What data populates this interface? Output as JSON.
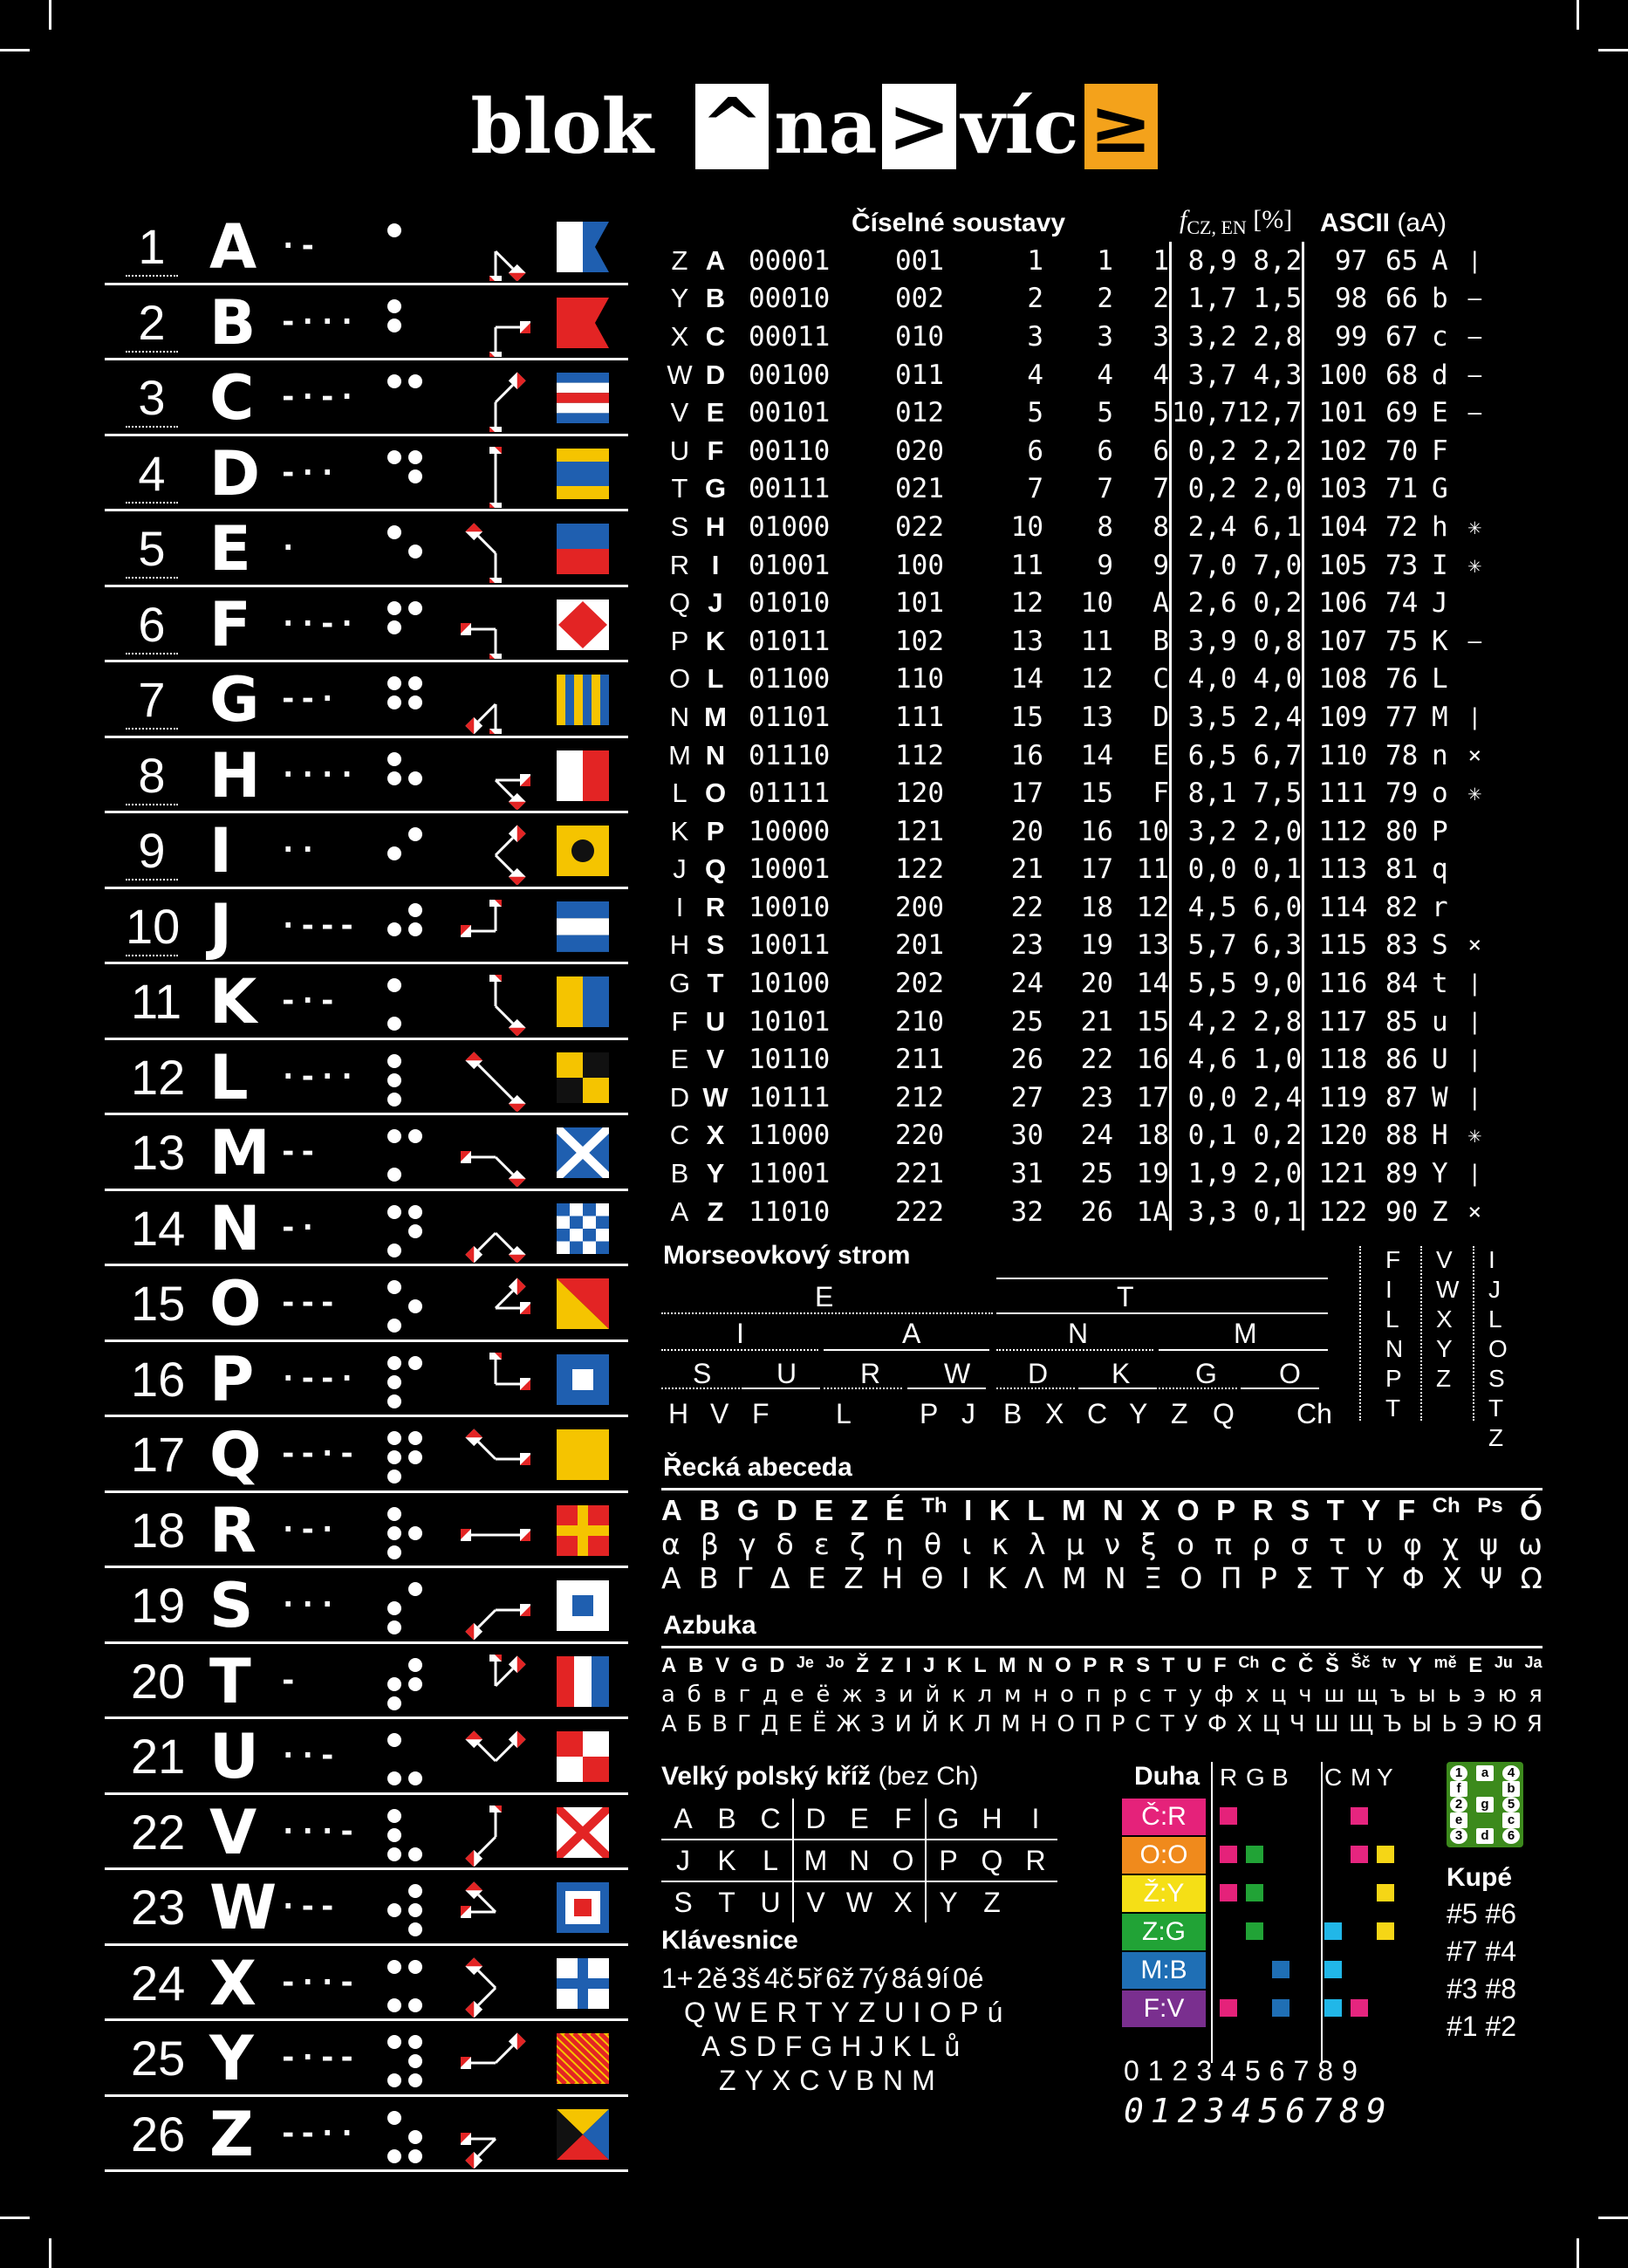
{
  "title": {
    "a": "blok",
    "b": "^",
    "c": "na",
    "d": ">",
    "e": "víc",
    "f": "≥"
  },
  "letters": [
    {
      "n": "1",
      "l": "A",
      "m": "·-"
    },
    {
      "n": "2",
      "l": "B",
      "m": "-···"
    },
    {
      "n": "3",
      "l": "C",
      "m": "-·-·"
    },
    {
      "n": "4",
      "l": "D",
      "m": "-··"
    },
    {
      "n": "5",
      "l": "E",
      "m": "·"
    },
    {
      "n": "6",
      "l": "F",
      "m": "··-·"
    },
    {
      "n": "7",
      "l": "G",
      "m": "--·"
    },
    {
      "n": "8",
      "l": "H",
      "m": "····"
    },
    {
      "n": "9",
      "l": "I",
      "m": "··"
    },
    {
      "n": "10",
      "l": "J",
      "m": "·---"
    },
    {
      "n": "11",
      "l": "K",
      "m": "-·-"
    },
    {
      "n": "12",
      "l": "L",
      "m": "·-··"
    },
    {
      "n": "13",
      "l": "M",
      "m": "--"
    },
    {
      "n": "14",
      "l": "N",
      "m": "-·"
    },
    {
      "n": "15",
      "l": "O",
      "m": "---"
    },
    {
      "n": "16",
      "l": "P",
      "m": "·--·"
    },
    {
      "n": "17",
      "l": "Q",
      "m": "--·-"
    },
    {
      "n": "18",
      "l": "R",
      "m": "·-·"
    },
    {
      "n": "19",
      "l": "S",
      "m": "···"
    },
    {
      "n": "20",
      "l": "T",
      "m": "-"
    },
    {
      "n": "21",
      "l": "U",
      "m": "··-"
    },
    {
      "n": "22",
      "l": "V",
      "m": "···-"
    },
    {
      "n": "23",
      "l": "W",
      "m": "·--"
    },
    {
      "n": "24",
      "l": "X",
      "m": "-··-"
    },
    {
      "n": "25",
      "l": "Y",
      "m": "-·--"
    },
    {
      "n": "26",
      "l": "Z",
      "m": "--··"
    }
  ],
  "numsys": {
    "heading": "Číselné soustavy",
    "freq_label": "f",
    "freq_sub": "CZ, EN",
    "freq_unit": "[%]",
    "ascii_label": "ASCII",
    "ascii_case": "(aA)",
    "rows": [
      [
        "Z",
        "A",
        "00001",
        "001",
        "1",
        "1",
        "1",
        "8,9",
        "8,2",
        "97",
        "65",
        "A",
        "|"
      ],
      [
        "Y",
        "B",
        "00010",
        "002",
        "2",
        "2",
        "2",
        "1,7",
        "1,5",
        "98",
        "66",
        "b",
        "–"
      ],
      [
        "X",
        "C",
        "00011",
        "010",
        "3",
        "3",
        "3",
        "3,2",
        "2,8",
        "99",
        "67",
        "c",
        "–"
      ],
      [
        "W",
        "D",
        "00100",
        "011",
        "4",
        "4",
        "4",
        "3,7",
        "4,3",
        "100",
        "68",
        "d",
        "–"
      ],
      [
        "V",
        "E",
        "00101",
        "012",
        "5",
        "5",
        "5",
        "10,7",
        "12,7",
        "101",
        "69",
        "E",
        "–"
      ],
      [
        "U",
        "F",
        "00110",
        "020",
        "6",
        "6",
        "6",
        "0,2",
        "2,2",
        "102",
        "70",
        "F",
        ""
      ],
      [
        "T",
        "G",
        "00111",
        "021",
        "7",
        "7",
        "7",
        "0,2",
        "2,0",
        "103",
        "71",
        "G",
        ""
      ],
      [
        "S",
        "H",
        "01000",
        "022",
        "10",
        "8",
        "8",
        "2,4",
        "6,1",
        "104",
        "72",
        "h",
        "✳"
      ],
      [
        "R",
        "I",
        "01001",
        "100",
        "11",
        "9",
        "9",
        "7,0",
        "7,0",
        "105",
        "73",
        "I",
        "✳"
      ],
      [
        "Q",
        "J",
        "01010",
        "101",
        "12",
        "10",
        "A",
        "2,6",
        "0,2",
        "106",
        "74",
        "J",
        ""
      ],
      [
        "P",
        "K",
        "01011",
        "102",
        "13",
        "11",
        "B",
        "3,9",
        "0,8",
        "107",
        "75",
        "K",
        "–"
      ],
      [
        "O",
        "L",
        "01100",
        "110",
        "14",
        "12",
        "C",
        "4,0",
        "4,0",
        "108",
        "76",
        "L",
        ""
      ],
      [
        "N",
        "M",
        "01101",
        "111",
        "15",
        "13",
        "D",
        "3,5",
        "2,4",
        "109",
        "77",
        "M",
        "|"
      ],
      [
        "M",
        "N",
        "01110",
        "112",
        "16",
        "14",
        "E",
        "6,5",
        "6,7",
        "110",
        "78",
        "n",
        "×"
      ],
      [
        "L",
        "O",
        "01111",
        "120",
        "17",
        "15",
        "F",
        "8,1",
        "7,5",
        "111",
        "79",
        "o",
        "✳"
      ],
      [
        "K",
        "P",
        "10000",
        "121",
        "20",
        "16",
        "10",
        "3,2",
        "2,0",
        "112",
        "80",
        "P",
        ""
      ],
      [
        "J",
        "Q",
        "10001",
        "122",
        "21",
        "17",
        "11",
        "0,0",
        "0,1",
        "113",
        "81",
        "q",
        ""
      ],
      [
        "I",
        "R",
        "10010",
        "200",
        "22",
        "18",
        "12",
        "4,5",
        "6,0",
        "114",
        "82",
        "r",
        ""
      ],
      [
        "H",
        "S",
        "10011",
        "201",
        "23",
        "19",
        "13",
        "5,7",
        "6,3",
        "115",
        "83",
        "S",
        "×"
      ],
      [
        "G",
        "T",
        "10100",
        "202",
        "24",
        "20",
        "14",
        "5,5",
        "9,0",
        "116",
        "84",
        "t",
        "|"
      ],
      [
        "F",
        "U",
        "10101",
        "210",
        "25",
        "21",
        "15",
        "4,2",
        "2,8",
        "117",
        "85",
        "u",
        "|"
      ],
      [
        "E",
        "V",
        "10110",
        "211",
        "26",
        "22",
        "16",
        "4,6",
        "1,0",
        "118",
        "86",
        "U",
        "|"
      ],
      [
        "D",
        "W",
        "10111",
        "212",
        "27",
        "23",
        "17",
        "0,0",
        "2,4",
        "119",
        "87",
        "W",
        "|"
      ],
      [
        "C",
        "X",
        "11000",
        "220",
        "30",
        "24",
        "18",
        "0,1",
        "0,2",
        "120",
        "88",
        "H",
        "✳"
      ],
      [
        "B",
        "Y",
        "11001",
        "221",
        "31",
        "25",
        "19",
        "1,9",
        "2,0",
        "121",
        "89",
        "Y",
        "|"
      ],
      [
        "A",
        "Z",
        "11010",
        "222",
        "32",
        "26",
        "1A",
        "3,3",
        "0,1",
        "122",
        "90",
        "Z",
        "×"
      ]
    ]
  },
  "morse": {
    "heading": "Morseovkový strom",
    "l1": [
      "E",
      "T"
    ],
    "l2": [
      "I",
      "A",
      "N",
      "M"
    ],
    "l3": [
      "S",
      "U",
      "R",
      "W",
      "D",
      "K",
      "G",
      "O"
    ],
    "l4": [
      "H",
      "V",
      "F",
      "",
      "L",
      "",
      "P",
      "J",
      "B",
      "X",
      "C",
      "Y",
      "Z",
      "Q",
      "",
      "Ch"
    ],
    "side1": [
      "F",
      "I",
      "L",
      "N",
      "P",
      "T"
    ],
    "side2": [
      "V",
      "W",
      "X",
      "Y",
      "Z"
    ],
    "side3": [
      "I",
      "J",
      "L",
      "O",
      "S",
      "T",
      "Z"
    ]
  },
  "greek": {
    "heading": "Řecká abeceda",
    "latin": [
      "A",
      "B",
      "G",
      "D",
      "E",
      "Z",
      "É",
      "Th",
      "I",
      "K",
      "L",
      "M",
      "N",
      "X",
      "O",
      "P",
      "R",
      "S",
      "T",
      "Y",
      "F",
      "Ch",
      "Ps",
      "Ó"
    ],
    "lower": [
      "α",
      "β",
      "γ",
      "δ",
      "ε",
      "ζ",
      "η",
      "θ",
      "ι",
      "κ",
      "λ",
      "μ",
      "ν",
      "ξ",
      "ο",
      "π",
      "ρ",
      "σ",
      "τ",
      "υ",
      "φ",
      "χ",
      "ψ",
      "ω"
    ],
    "upper": [
      "Α",
      "Β",
      "Γ",
      "Δ",
      "Ε",
      "Ζ",
      "Η",
      "Θ",
      "Ι",
      "Κ",
      "Λ",
      "Μ",
      "Ν",
      "Ξ",
      "Ο",
      "Π",
      "Ρ",
      "Σ",
      "Τ",
      "Υ",
      "Φ",
      "Χ",
      "Ψ",
      "Ω"
    ]
  },
  "azbuka": {
    "heading": "Azbuka",
    "latin": [
      "A",
      "B",
      "V",
      "G",
      "D",
      "Je",
      "Jo",
      "Ž",
      "Z",
      "I",
      "J",
      "K",
      "L",
      "M",
      "N",
      "O",
      "P",
      "R",
      "S",
      "T",
      "U",
      "F",
      "Ch",
      "C",
      "Č",
      "Š",
      "Šč",
      "tv",
      "Y",
      "mě",
      "E",
      "Ju",
      "Ja"
    ],
    "lower": [
      "а",
      "б",
      "в",
      "г",
      "д",
      "е",
      "ё",
      "ж",
      "з",
      "и",
      "й",
      "к",
      "л",
      "м",
      "н",
      "о",
      "п",
      "р",
      "с",
      "т",
      "у",
      "ф",
      "х",
      "ц",
      "ч",
      "ш",
      "щ",
      "ъ",
      "ы",
      "ь",
      "э",
      "ю",
      "я"
    ],
    "upper": [
      "А",
      "Б",
      "В",
      "Г",
      "Д",
      "Е",
      "Ё",
      "Ж",
      "З",
      "И",
      "Й",
      "К",
      "Л",
      "М",
      "Н",
      "О",
      "П",
      "Р",
      "С",
      "Т",
      "У",
      "Ф",
      "Х",
      "Ц",
      "Ч",
      "Ш",
      "Щ",
      "Ъ",
      "Ы",
      "Ь",
      "Э",
      "Ю",
      "Я"
    ]
  },
  "polish": {
    "heading": "Velký polský kříž",
    "note": "(bez Ch)",
    "grid": [
      [
        "A",
        "B",
        "C",
        "D",
        "E",
        "F",
        "G",
        "H",
        "I"
      ],
      [
        "J",
        "K",
        "L",
        "M",
        "N",
        "O",
        "P",
        "Q",
        "R"
      ],
      [
        "S",
        "T",
        "U",
        "V",
        "W",
        "X",
        "Y",
        "Z",
        ""
      ]
    ]
  },
  "keyboard": {
    "heading": "Klávesnice",
    "nums": [
      "1+",
      "2ě",
      "3š",
      "4č",
      "5ř",
      "6ž",
      "7ý",
      "8á",
      "9í",
      "0é"
    ],
    "row1": "QWERTYZUIOPú",
    "row2": "ASDFGHJKLů",
    "row3": "ZYXCVBNM"
  },
  "duha": {
    "heading": "Duha",
    "cols": [
      "R",
      "G",
      "B",
      "C",
      "M",
      "Y"
    ],
    "rows": [
      {
        "label": "Č:R",
        "color": "#e5227a"
      },
      {
        "label": "O:O",
        "color": "#f08a1c"
      },
      {
        "label": "Ž:Y",
        "color": "#f5df16"
      },
      {
        "label": "Z:G",
        "color": "#21a336"
      },
      {
        "label": "M:B",
        "color": "#1f6fb5"
      },
      {
        "label": "F:V",
        "color": "#7a2f8f"
      }
    ],
    "digits": "0123456789"
  },
  "kupe": {
    "heading": "Kupé",
    "rows": [
      "#5 #6",
      "#7 #4",
      "#3 #8",
      "#1 #2"
    ],
    "grid": [
      [
        "1",
        "a",
        "4"
      ],
      [
        "f",
        "",
        "b"
      ],
      [
        "2",
        "g",
        "5"
      ],
      [
        "e",
        "",
        "c"
      ],
      [
        "3",
        "d",
        "6"
      ]
    ]
  }
}
